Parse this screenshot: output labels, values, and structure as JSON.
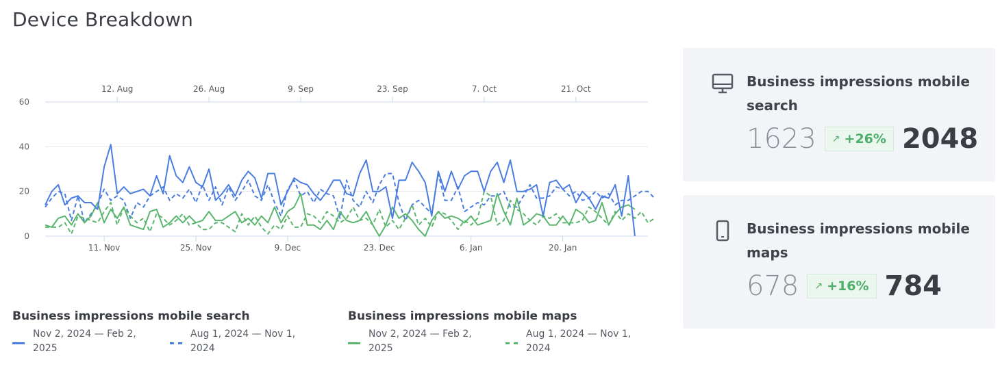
{
  "title": "Device Breakdown",
  "chart_data": {
    "type": "line",
    "yticks": [
      0,
      20,
      40,
      60
    ],
    "ylim": [
      0,
      60
    ],
    "x_current_ticks": [
      {
        "label": "11. Nov",
        "day": 9
      },
      {
        "label": "25. Nov",
        "day": 23
      },
      {
        "label": "9. Dec",
        "day": 37
      },
      {
        "label": "23. Dec",
        "day": 51
      },
      {
        "label": "6. Jan",
        "day": 65
      },
      {
        "label": "20. Jan",
        "day": 79
      }
    ],
    "x_previous_ticks": [
      {
        "label": "12. Aug",
        "day": 11
      },
      {
        "label": "26. Aug",
        "day": 25
      },
      {
        "label": "9. Sep",
        "day": 39
      },
      {
        "label": "23. Sep",
        "day": 53
      },
      {
        "label": "7. Oct",
        "day": 67
      },
      {
        "label": "21. Oct",
        "day": 81
      }
    ],
    "x_days": 93,
    "series": [
      {
        "name": "Business impressions mobile search",
        "period": "Nov 2, 2024 — Feb 2, 2025",
        "color": "#4a7de0",
        "dash": "solid",
        "values": [
          14,
          20,
          23,
          14,
          17,
          18,
          15,
          15,
          12,
          31,
          41,
          19,
          22,
          19,
          20,
          21,
          18,
          27,
          19,
          36,
          27,
          24,
          31,
          24,
          22,
          30,
          16,
          19,
          23,
          18,
          25,
          29,
          26,
          17,
          28,
          28,
          14,
          20,
          26,
          24,
          23,
          19,
          16,
          20,
          25,
          25,
          19,
          18,
          28,
          34,
          20,
          20,
          22,
          8,
          25,
          25,
          33,
          29,
          24,
          9,
          29,
          20,
          29,
          21,
          27,
          29,
          29,
          20,
          29,
          33,
          24,
          34,
          20,
          20,
          21,
          23,
          9,
          24,
          25,
          21,
          23,
          15,
          20,
          17,
          12,
          18,
          17,
          23,
          9,
          27,
          0
        ]
      },
      {
        "name": "Business impressions mobile search",
        "period": "Aug 1, 2024 — Nov 1, 2024",
        "color": "#4a7de0",
        "dash": "dashed",
        "values": [
          13,
          17,
          20,
          19,
          7,
          18,
          6,
          10,
          14,
          21,
          16,
          18,
          16,
          8,
          15,
          13,
          18,
          20,
          22,
          16,
          19,
          17,
          21,
          15,
          23,
          16,
          22,
          14,
          22,
          16,
          20,
          25,
          18,
          16,
          23,
          15,
          9,
          21,
          25,
          18,
          20,
          15,
          21,
          19,
          18,
          8,
          25,
          16,
          13,
          20,
          15,
          23,
          28,
          28,
          15,
          7,
          14,
          16,
          13,
          10,
          28,
          16,
          16,
          22,
          11,
          13,
          15,
          14,
          18,
          18,
          20,
          13,
          13,
          18,
          23,
          17,
          17,
          18,
          22,
          21,
          18,
          20,
          16,
          17,
          20,
          17,
          19,
          14,
          16,
          16,
          18,
          20,
          20,
          17
        ]
      },
      {
        "name": "Business impressions mobile maps",
        "period": "Nov 2, 2024 — Feb 2, 2025",
        "color": "#5ab56e",
        "dash": "solid",
        "values": [
          5,
          4,
          8,
          9,
          5,
          10,
          6,
          9,
          15,
          6,
          12,
          8,
          13,
          5,
          4,
          3,
          11,
          12,
          4,
          6,
          9,
          6,
          9,
          6,
          7,
          11,
          7,
          7,
          9,
          11,
          6,
          8,
          5,
          9,
          6,
          13,
          6,
          11,
          13,
          19,
          5,
          5,
          3,
          7,
          3,
          11,
          7,
          6,
          7,
          11,
          5,
          0,
          5,
          13,
          8,
          10,
          7,
          3,
          0,
          7,
          11,
          8,
          9,
          8,
          6,
          9,
          5,
          6,
          7,
          19,
          11,
          5,
          17,
          5,
          7,
          10,
          9,
          5,
          5,
          9,
          5,
          12,
          10,
          6,
          7,
          15,
          5,
          10,
          13,
          14,
          12
        ]
      },
      {
        "name": "Business impressions mobile maps",
        "period": "Aug 1, 2024 — Nov 1, 2024",
        "color": "#5ab56e",
        "dash": "dashed",
        "values": [
          4,
          4,
          4,
          6,
          1,
          9,
          8,
          7,
          6,
          11,
          15,
          5,
          13,
          9,
          6,
          8,
          2,
          10,
          8,
          5,
          7,
          10,
          5,
          6,
          3,
          3,
          6,
          6,
          4,
          2,
          10,
          5,
          9,
          4,
          1,
          5,
          3,
          9,
          4,
          4,
          10,
          9,
          6,
          11,
          9,
          6,
          8,
          13,
          7,
          8,
          5,
          12,
          4,
          7,
          3,
          8,
          14,
          5,
          8,
          4,
          11,
          10,
          7,
          3,
          7,
          5,
          8,
          20,
          18,
          5,
          7,
          16,
          12,
          10,
          7,
          5,
          9,
          8,
          10,
          6,
          6,
          6,
          7,
          13,
          11,
          8,
          5,
          11,
          7,
          10,
          8,
          11,
          6,
          8
        ]
      }
    ]
  },
  "legend": [
    {
      "title": "Business impressions mobile search",
      "items": [
        {
          "label": "Nov 2, 2024 — Feb 2, 2025",
          "style": "solid",
          "color": "#4a7de0"
        },
        {
          "label": "Aug 1, 2024 — Nov 1, 2024",
          "style": "dashed",
          "color": "#4a7de0"
        }
      ]
    },
    {
      "title": "Business impressions mobile maps",
      "items": [
        {
          "label": "Nov 2, 2024 — Feb 2, 2025",
          "style": "solid",
          "color": "#5ab56e"
        },
        {
          "label": "Aug 1, 2024 — Nov 1, 2024",
          "style": "dashed",
          "color": "#5ab56e"
        }
      ]
    }
  ],
  "cards": [
    {
      "icon": "desktop-icon",
      "label": "Business impressions mobile search",
      "previous": "1623",
      "change": "+26%",
      "current": "2048"
    },
    {
      "icon": "mobile-icon",
      "label": "Business impressions mobile maps",
      "previous": "678",
      "change": "+16%",
      "current": "784"
    }
  ]
}
